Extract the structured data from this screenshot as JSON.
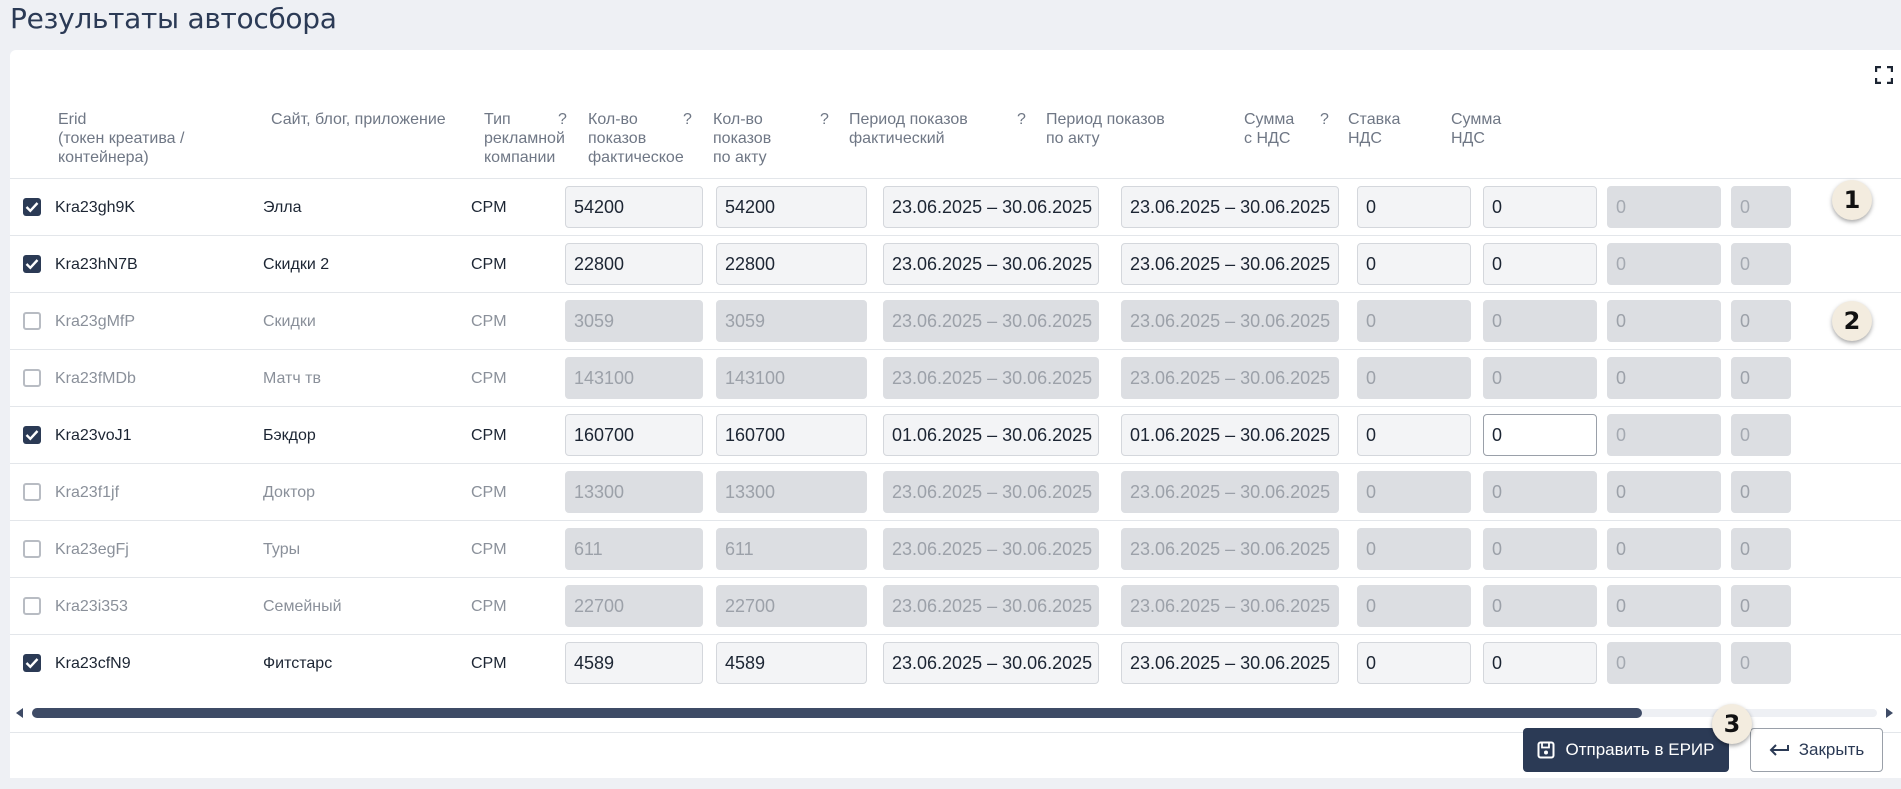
{
  "page": {
    "title": "Результаты автосбора"
  },
  "columns": {
    "erid": "Erid\n(токен креатива / контейнера)",
    "site": "Сайт, блог, приложение",
    "type": "Тип\nрекламной\nкомпании",
    "shows_fact": "Кол-во\nпоказов\nфактическое",
    "shows_act": "Кол-во показов\nпо акту",
    "period_fact": "Период показов\nфактический",
    "period_act": "Период показов\nпо акту",
    "sum_vat": "Сумма\nс НДС",
    "vat_rate": "Ставка\nНДС",
    "vat_sum": "Сумма\nНДС",
    "help_mark": "?"
  },
  "rows": [
    {
      "checked": true,
      "erid": "Kra23gh9K",
      "site": "Элла",
      "type": "CPM",
      "shows_fact": "54200",
      "shows_act": "54200",
      "period_fact": "23.06.2025 – 30.06.2025",
      "period_act": "23.06.2025 – 30.06.2025",
      "sum_vat": "0",
      "vat_rate": "0",
      "vat_sum": "0",
      "extra": "0"
    },
    {
      "checked": true,
      "erid": "Kra23hN7B",
      "site": "Скидки 2",
      "type": "CPM",
      "shows_fact": "22800",
      "shows_act": "22800",
      "period_fact": "23.06.2025 – 30.06.2025",
      "period_act": "23.06.2025 – 30.06.2025",
      "sum_vat": "0",
      "vat_rate": "0",
      "vat_sum": "0",
      "extra": "0"
    },
    {
      "checked": false,
      "erid": "Kra23gMfP",
      "site": "Скидки",
      "type": "CPM",
      "shows_fact": "3059",
      "shows_act": "3059",
      "period_fact": "23.06.2025 – 30.06.2025",
      "period_act": "23.06.2025 – 30.06.2025",
      "sum_vat": "0",
      "vat_rate": "0",
      "vat_sum": "0",
      "extra": "0"
    },
    {
      "checked": false,
      "erid": "Kra23fMDb",
      "site": "Матч тв",
      "type": "CPM",
      "shows_fact": "143100",
      "shows_act": "143100",
      "period_fact": "23.06.2025 – 30.06.2025",
      "period_act": "23.06.2025 – 30.06.2025",
      "sum_vat": "0",
      "vat_rate": "0",
      "vat_sum": "0",
      "extra": "0"
    },
    {
      "checked": true,
      "erid": "Kra23voJ1",
      "site": "Бэкдор",
      "type": "CPM",
      "shows_fact": "160700",
      "shows_act": "160700",
      "period_fact": "01.06.2025 – 30.06.2025",
      "period_act": "01.06.2025 – 30.06.2025",
      "sum_vat": "0",
      "vat_rate": "0",
      "vat_sum": "0",
      "extra": "0"
    },
    {
      "checked": false,
      "erid": "Kra23f1jf",
      "site": "Доктор",
      "type": "CPM",
      "shows_fact": "13300",
      "shows_act": "13300",
      "period_fact": "23.06.2025 – 30.06.2025",
      "period_act": "23.06.2025 – 30.06.2025",
      "sum_vat": "0",
      "vat_rate": "0",
      "vat_sum": "0",
      "extra": "0"
    },
    {
      "checked": false,
      "erid": "Kra23egFj",
      "site": "Туры",
      "type": "CPM",
      "shows_fact": "611",
      "shows_act": "611",
      "period_fact": "23.06.2025 – 30.06.2025",
      "period_act": "23.06.2025 – 30.06.2025",
      "sum_vat": "0",
      "vat_rate": "0",
      "vat_sum": "0",
      "extra": "0"
    },
    {
      "checked": false,
      "erid": "Kra23i353",
      "site": "Семейный",
      "type": "CPM",
      "shows_fact": "22700",
      "shows_act": "22700",
      "period_fact": "23.06.2025 – 30.06.2025",
      "period_act": "23.06.2025 – 30.06.2025",
      "sum_vat": "0",
      "vat_rate": "0",
      "vat_sum": "0",
      "extra": "0"
    },
    {
      "checked": true,
      "erid": "Kra23cfN9",
      "site": "Фитстарс",
      "type": "CPM",
      "shows_fact": "4589",
      "shows_act": "4589",
      "period_fact": "23.06.2025 – 30.06.2025",
      "period_act": "23.06.2025 – 30.06.2025",
      "sum_vat": "0",
      "vat_rate": "0",
      "vat_sum": "0",
      "extra": "0"
    }
  ],
  "footer": {
    "send_label": "Отправить в ЕРИР",
    "close_label": "Закрыть"
  },
  "badges": [
    "1",
    "2",
    "3"
  ],
  "colors": {
    "primary": "#2b3a55",
    "disabled_field": "#dcdee2",
    "field_bg": "#f3f4f6"
  }
}
